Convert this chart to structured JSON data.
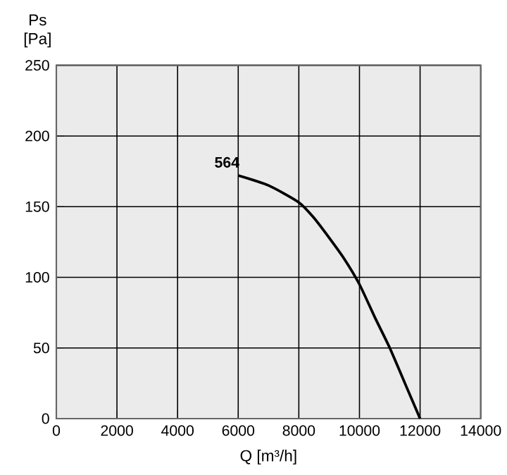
{
  "chart_data": {
    "type": "line",
    "xlabel": "Q [m³/h]",
    "ylabel": "Ps [Pa]",
    "x": [
      6000,
      7000,
      8000,
      8500,
      9000,
      9500,
      10000,
      10500,
      11000,
      11500,
      12000
    ],
    "series": [
      {
        "color": "#000000",
        "values": [
          172,
          165,
          153,
          142,
          128,
          113,
          95,
          72,
          50,
          25,
          0
        ]
      }
    ],
    "annotations": [
      {
        "text": "564",
        "x": 6000,
        "y": 172
      }
    ],
    "xlim": [
      0,
      14000
    ],
    "ylim": [
      0,
      250
    ],
    "xticks": [
      0,
      2000,
      4000,
      6000,
      8000,
      10000,
      12000,
      14000
    ],
    "yticks": [
      0,
      50,
      100,
      150,
      200,
      250
    ],
    "grid": true,
    "marker": "none",
    "line_style": "solid"
  }
}
